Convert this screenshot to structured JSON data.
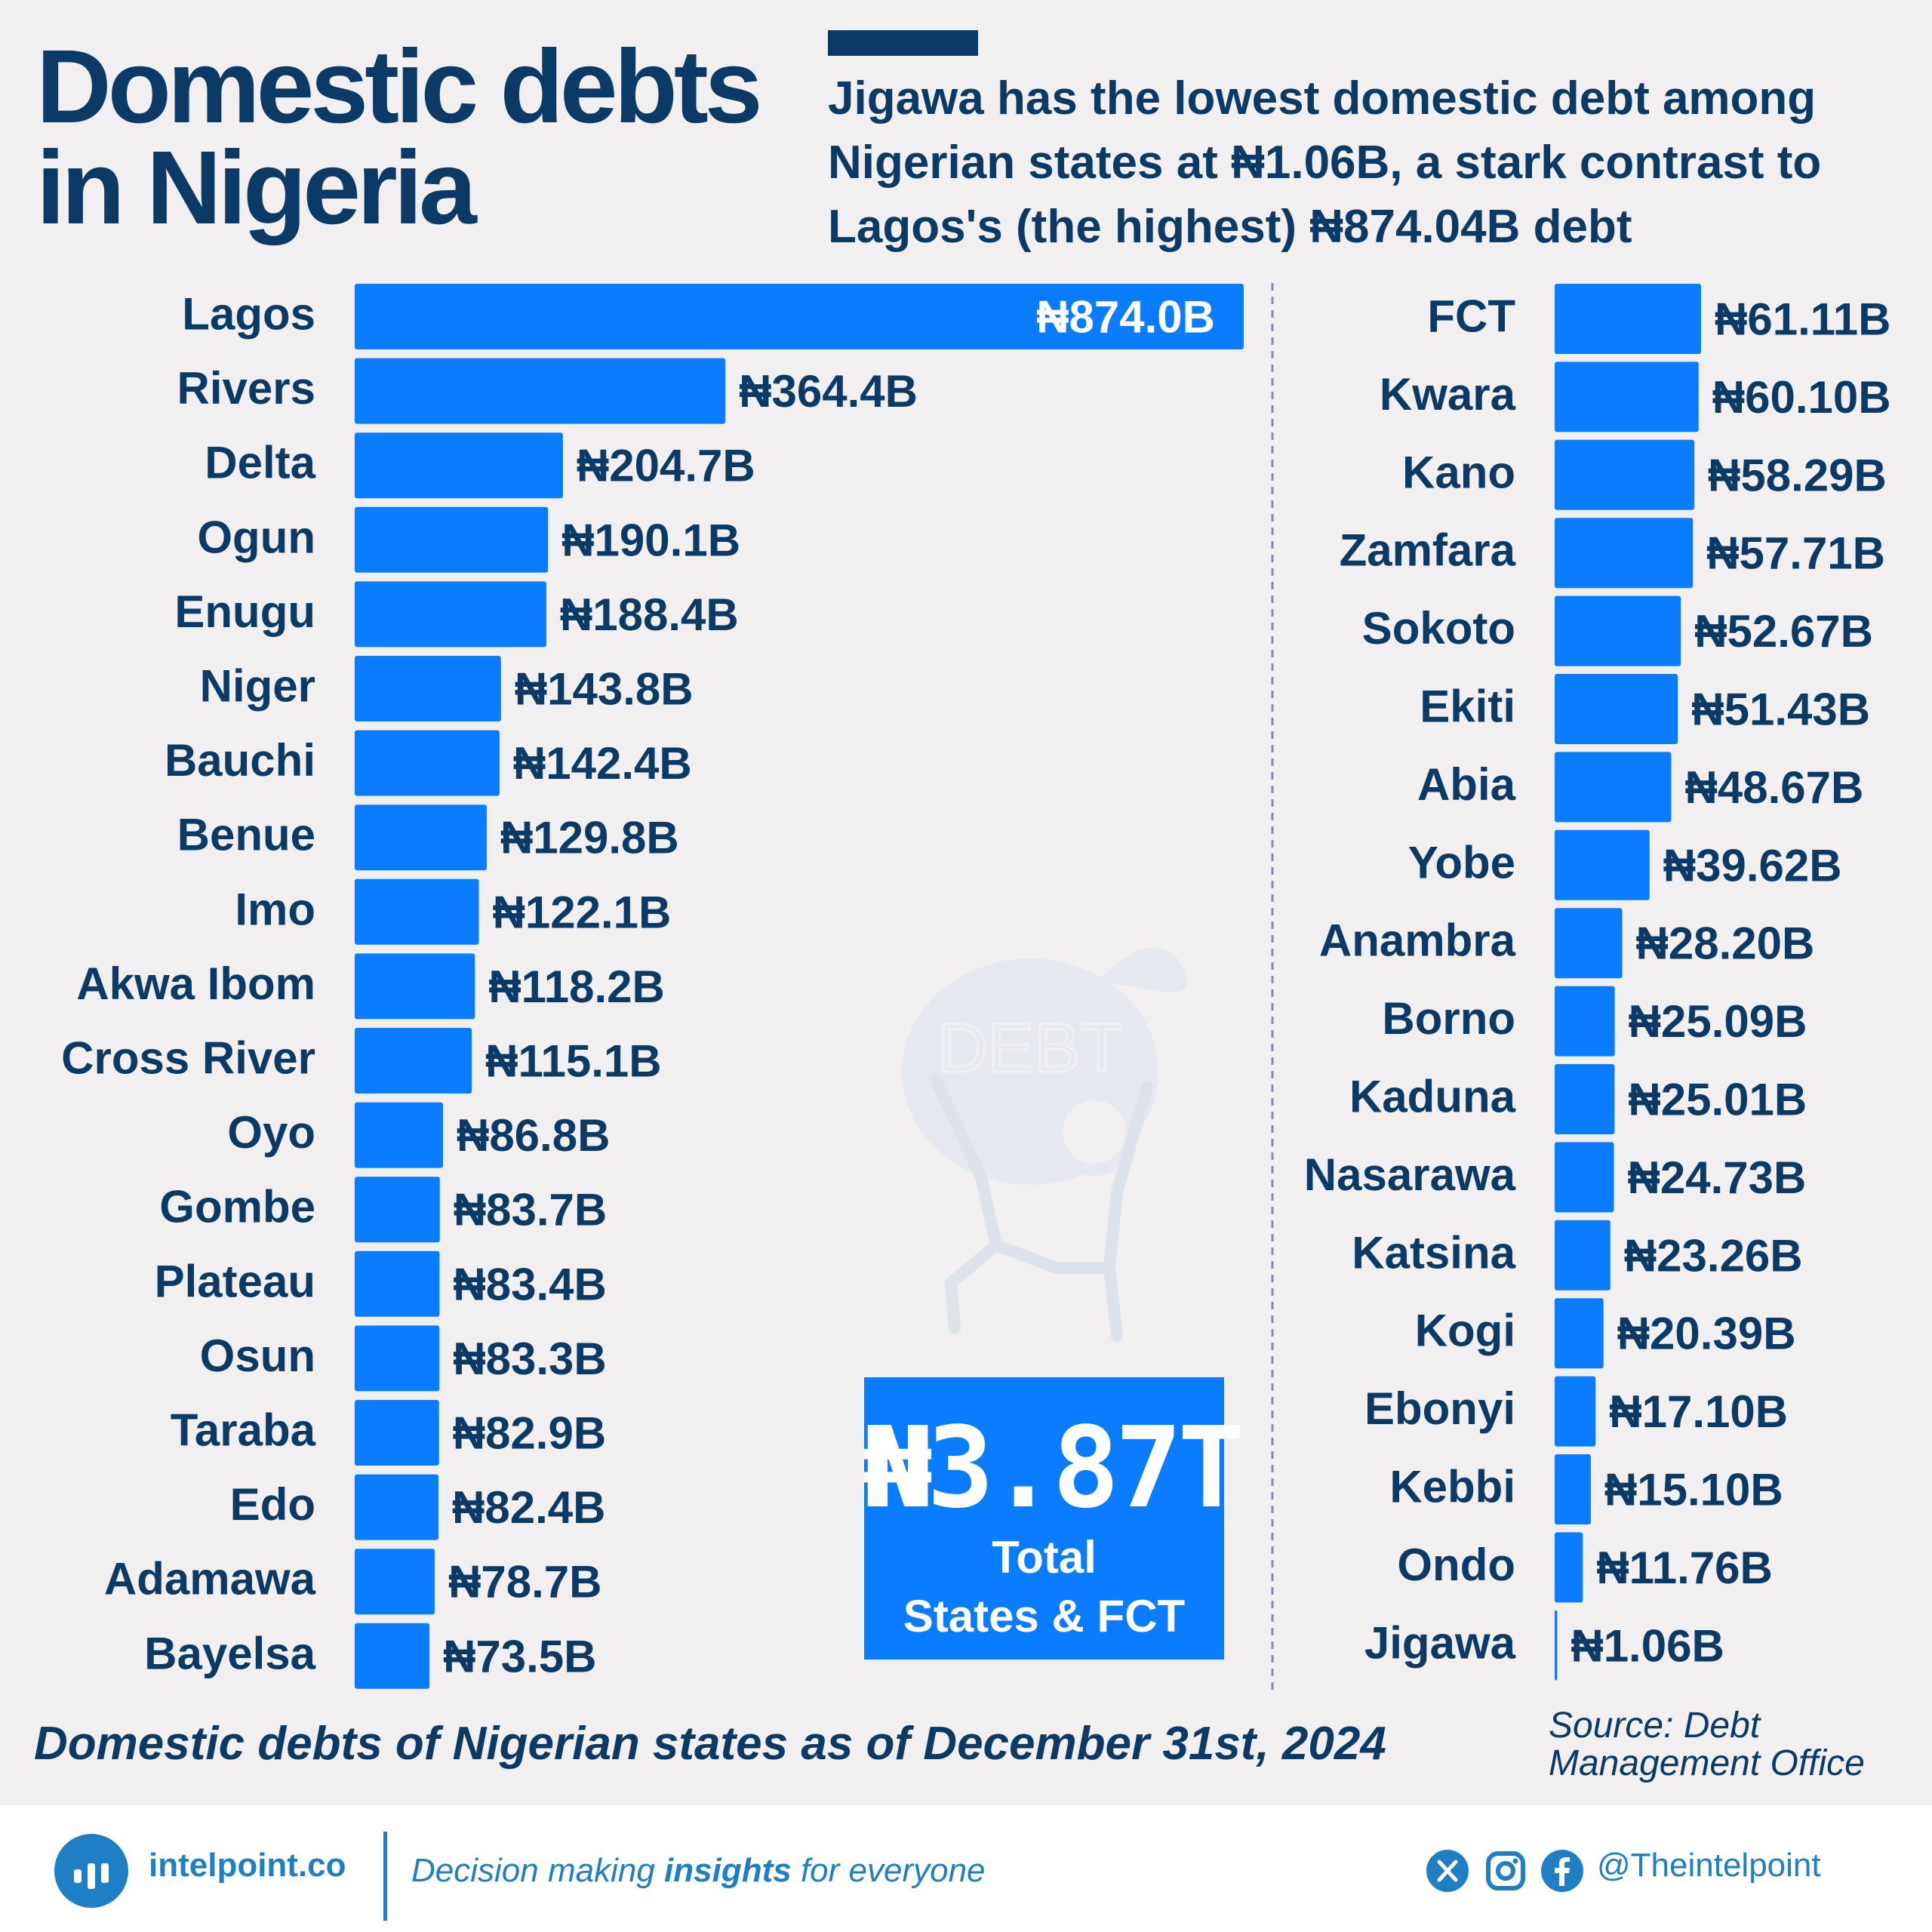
{
  "header": {
    "title_line1": "Domestic debts",
    "title_line2": "in Nigeria",
    "subtitle_line1": "Jigawa has the lowest domestic debt among",
    "subtitle_line2": "Nigerian states at ₦1.06B, a stark contrast to",
    "subtitle_line3": "Lagos's (the highest) ₦874.04B debt"
  },
  "chart_data": {
    "type": "bar",
    "orientation": "horizontal",
    "grid": false,
    "legend": "none",
    "bar_color": "#0a7cff",
    "title": "Domestic debts in Nigeria",
    "panels": [
      {
        "categories": [
          "Lagos",
          "Rivers",
          "Delta",
          "Ogun",
          "Enugu",
          "Niger",
          "Bauchi",
          "Benue",
          "Imo",
          "Akwa Ibom",
          "Cross River",
          "Oyo",
          "Gombe",
          "Plateau",
          "Osun",
          "Taraba",
          "Edo",
          "Adamawa",
          "Bayelsa"
        ],
        "values": [
          874.0,
          364.4,
          204.7,
          190.1,
          188.4,
          143.8,
          142.4,
          129.8,
          122.1,
          118.2,
          115.1,
          86.8,
          83.7,
          83.4,
          83.3,
          82.9,
          82.4,
          78.7,
          73.5
        ],
        "labels": [
          "₦874.0B",
          "₦364.4B",
          "₦204.7B",
          "₦190.1B",
          "₦188.4B",
          "₦143.8B",
          "₦142.4B",
          "₦129.8B",
          "₦122.1B",
          "₦118.2B",
          "₦115.1B",
          "₦86.8B",
          "₦83.7B",
          "₦83.4B",
          "₦83.3B",
          "₦82.9B",
          "₦82.4B",
          "₦78.7B",
          "₦73.5B"
        ],
        "unit": "₦ billion"
      },
      {
        "categories": [
          "FCT",
          "Kwara",
          "Kano",
          "Zamfara",
          "Sokoto",
          "Ekiti",
          "Abia",
          "Yobe",
          "Anambra",
          "Borno",
          "Kaduna",
          "Nasarawa",
          "Katsina",
          "Kogi",
          "Ebonyi",
          "Kebbi",
          "Ondo",
          "Jigawa"
        ],
        "values": [
          61.11,
          60.1,
          58.29,
          57.71,
          52.67,
          51.43,
          48.67,
          39.62,
          28.2,
          25.09,
          25.01,
          24.73,
          23.26,
          20.39,
          17.1,
          15.1,
          11.76,
          1.06
        ],
        "labels": [
          "₦61.11B",
          "₦60.10B",
          "₦58.29B",
          "₦57.71B",
          "₦52.67B",
          "₦51.43B",
          "₦48.67B",
          "₦39.62B",
          "₦28.20B",
          "₦25.09B",
          "₦25.01B",
          "₦24.73B",
          "₦23.26B",
          "₦20.39B",
          "₦17.10B",
          "₦15.10B",
          "₦11.76B",
          "₦1.06B"
        ],
        "unit": "₦ billion"
      }
    ]
  },
  "total": {
    "value": "₦3.87T",
    "label_line1": "Total",
    "label_line2": "States & FCT"
  },
  "watermark_text": "DEBT",
  "caption": "Domestic debts of Nigerian states as of December 31st, 2024",
  "source": {
    "line1": "Source: Debt",
    "line2": "Management Office"
  },
  "footer": {
    "brand": "intelpoint.co",
    "tagline_before": "Decision making ",
    "tagline_bold": "insights",
    "tagline_after": " for everyone",
    "handle": "@Theintelpoint",
    "social_icons": [
      "x-icon",
      "instagram-icon",
      "facebook-icon"
    ]
  }
}
